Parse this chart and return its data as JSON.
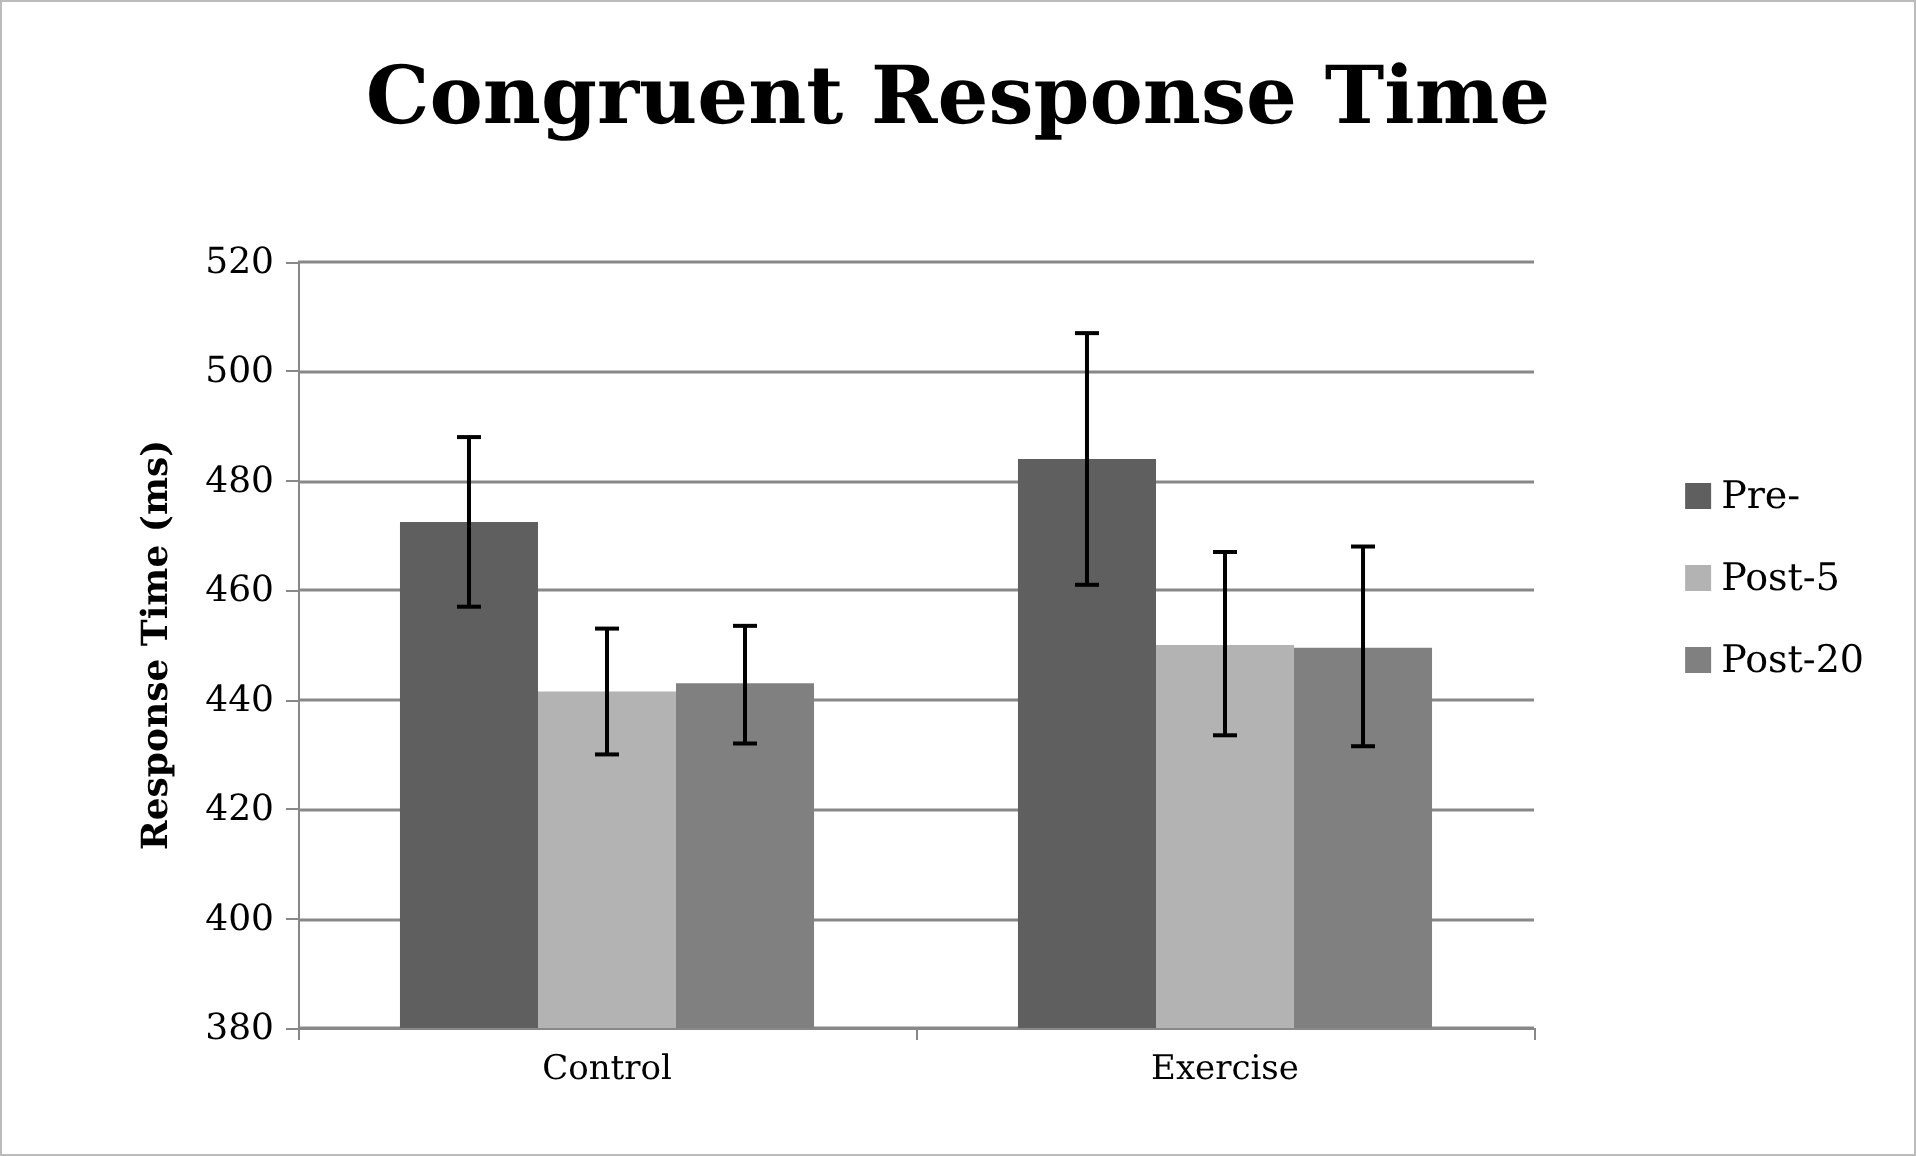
{
  "chart_data": {
    "type": "bar",
    "title": "Congruent Response Time",
    "ylabel": "Response Time (ms)",
    "categories": [
      "Control",
      "Exercise"
    ],
    "series": [
      {
        "name": "Pre-",
        "color": "#5f5f5f",
        "values": [
          472.5,
          484
        ],
        "errors": [
          [
            457,
            488
          ],
          [
            461,
            507
          ]
        ]
      },
      {
        "name": "Post-5",
        "color": "#b3b3b3",
        "values": [
          441.5,
          450
        ],
        "errors": [
          [
            430,
            453
          ],
          [
            433.5,
            467
          ]
        ]
      },
      {
        "name": "Post-20",
        "color": "#808080",
        "values": [
          443,
          449.5
        ],
        "errors": [
          [
            432,
            453.5
          ],
          [
            431.5,
            468
          ]
        ]
      }
    ],
    "ylim": [
      380,
      520
    ],
    "yticks": [
      380,
      400,
      420,
      440,
      460,
      480,
      500,
      520
    ],
    "grid": "y",
    "legend": "right"
  }
}
